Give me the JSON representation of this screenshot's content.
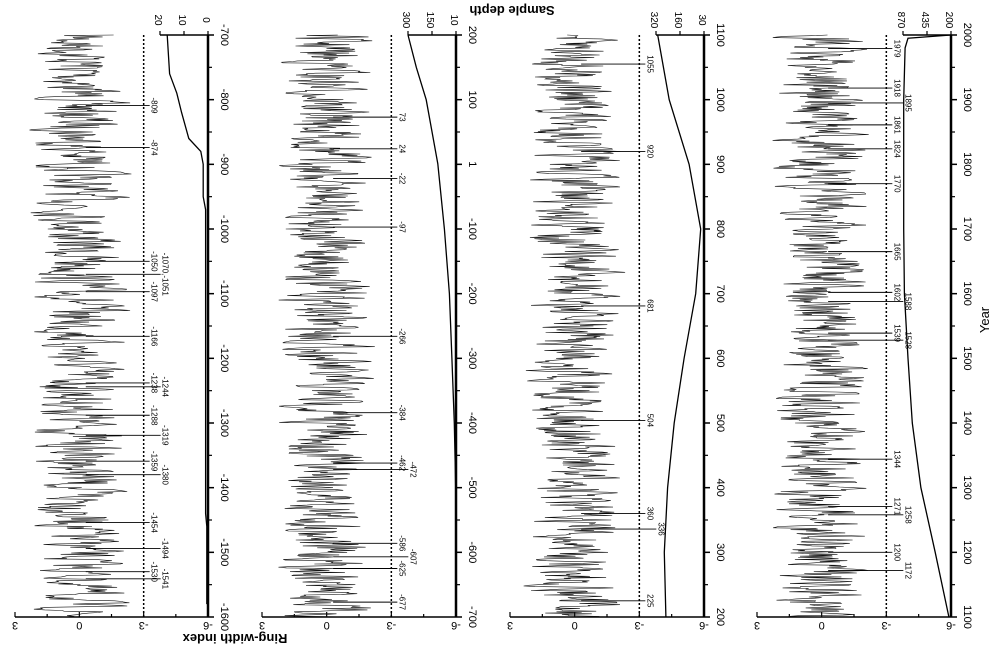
{
  "chart_data": [
    {
      "type": "line",
      "panel": 1,
      "xlabel": "",
      "ylabel": "Ring-width index",
      "y2label": "Sample depth",
      "year_range": [
        -700,
        -1600
      ],
      "year_ticks": [
        "-700",
        "-800",
        "-900",
        "-1000",
        "-1100",
        "-1200",
        "-1300",
        "-1400",
        "-1500",
        "-1600"
      ],
      "index_ticks": [
        "3",
        "0",
        "-3",
        "-6"
      ],
      "index_range": [
        3,
        -6
      ],
      "threshold": -3,
      "depth_ticks": [
        "20",
        "10",
        "0"
      ],
      "depth_range": [
        0,
        20
      ],
      "depth_curve": [
        [
          -700,
          17
        ],
        [
          -760,
          16
        ],
        [
          -790,
          13
        ],
        [
          -820,
          11
        ],
        [
          -860,
          8
        ],
        [
          -880,
          3
        ],
        [
          -900,
          2
        ],
        [
          -950,
          2
        ],
        [
          -970,
          1
        ],
        [
          -1100,
          1
        ],
        [
          -1440,
          1
        ],
        [
          -1460,
          0.5
        ],
        [
          -1580,
          0.5
        ]
      ],
      "events": [
        "-809",
        "-874",
        "-1050",
        "-1070,-1051",
        "-1097",
        "-1166",
        "-1238",
        "-1244",
        "-1288",
        "-1319",
        "-1359",
        "-1380",
        "-1454",
        "-1494",
        "-1530",
        "-1541"
      ],
      "event_years": [
        -809,
        -874,
        -1050,
        -1070,
        -1097,
        -1166,
        -1238,
        -1244,
        -1288,
        -1319,
        -1359,
        -1380,
        -1454,
        -1494,
        -1530,
        -1541
      ]
    },
    {
      "type": "line",
      "panel": 2,
      "year_range": [
        200,
        -700
      ],
      "year_ticks": [
        "200",
        "100",
        "1",
        "-100",
        "-200",
        "-300",
        "-400",
        "-500",
        "-600",
        "-700"
      ],
      "index_ticks": [
        "3",
        "0",
        "-3",
        "-6"
      ],
      "index_range": [
        3,
        -6
      ],
      "threshold": -3,
      "depth_ticks": [
        "300",
        "150",
        "10"
      ],
      "depth_range": [
        10,
        300
      ],
      "depth_curve": [
        [
          200,
          300
        ],
        [
          150,
          250
        ],
        [
          100,
          190
        ],
        [
          1,
          120
        ],
        [
          -100,
          80
        ],
        [
          -200,
          50
        ],
        [
          -300,
          35
        ],
        [
          -400,
          20
        ],
        [
          -500,
          12
        ],
        [
          -600,
          10
        ],
        [
          -700,
          10
        ]
      ],
      "events": [
        "73",
        "24",
        "-22",
        "-97",
        "-266",
        "-384",
        "-462",
        "-472",
        "-586",
        "-607",
        "-625",
        "-677"
      ],
      "event_years": [
        73,
        24,
        -22,
        -97,
        -266,
        -384,
        -462,
        -472,
        -586,
        -607,
        -625,
        -677
      ]
    },
    {
      "type": "line",
      "panel": 3,
      "year_range": [
        1100,
        200
      ],
      "year_ticks": [
        "1100",
        "1000",
        "900",
        "800",
        "700",
        "600",
        "500",
        "400",
        "300",
        "200"
      ],
      "index_ticks": [
        "3",
        "0",
        "-3",
        "-6"
      ],
      "index_range": [
        3,
        -6
      ],
      "threshold": -3,
      "depth_ticks": [
        "320",
        "160",
        "30"
      ],
      "depth_range": [
        30,
        320
      ],
      "depth_curve": [
        [
          1100,
          310
        ],
        [
          1000,
          240
        ],
        [
          900,
          120
        ],
        [
          800,
          50
        ],
        [
          700,
          80
        ],
        [
          600,
          150
        ],
        [
          500,
          210
        ],
        [
          400,
          250
        ],
        [
          300,
          270
        ],
        [
          200,
          260
        ]
      ],
      "events": [
        "1055",
        "920",
        "681",
        "504",
        "360",
        "336",
        "225"
      ],
      "event_years": [
        1055,
        920,
        681,
        504,
        360,
        336,
        225
      ]
    },
    {
      "type": "line",
      "panel": 4,
      "xlabel": "Year",
      "year_range": [
        2000,
        1100
      ],
      "year_ticks": [
        "2000",
        "1900",
        "1800",
        "1700",
        "1600",
        "1500",
        "1400",
        "1300",
        "1200",
        "1100"
      ],
      "index_ticks": [
        "3",
        "0",
        "-3",
        "-6"
      ],
      "index_range": [
        3,
        -6
      ],
      "threshold": -3,
      "depth_ticks": [
        "870",
        "435",
        "200"
      ],
      "depth_range": [
        200,
        870
      ],
      "depth_curve": [
        [
          2000,
          200
        ],
        [
          1995,
          800
        ],
        [
          1980,
          840
        ],
        [
          1900,
          860
        ],
        [
          1700,
          860
        ],
        [
          1600,
          850
        ],
        [
          1500,
          800
        ],
        [
          1400,
          740
        ],
        [
          1300,
          620
        ],
        [
          1200,
          420
        ],
        [
          1100,
          230
        ]
      ],
      "events": [
        "1979",
        "1918",
        "1895",
        "1861",
        "1824",
        "1770",
        "1665",
        "1602",
        "1588",
        "1539",
        "1528",
        "1344",
        "1271",
        "1258",
        "1200",
        "1172"
      ],
      "event_years": [
        1979,
        1918,
        1895,
        1861,
        1824,
        1770,
        1665,
        1602,
        1588,
        1539,
        1528,
        1344,
        1271,
        1258,
        1200,
        1172
      ]
    }
  ],
  "labels": {
    "ylabel": "Ring-width index",
    "y2label": "Sample depth",
    "xlabel": "Year"
  }
}
